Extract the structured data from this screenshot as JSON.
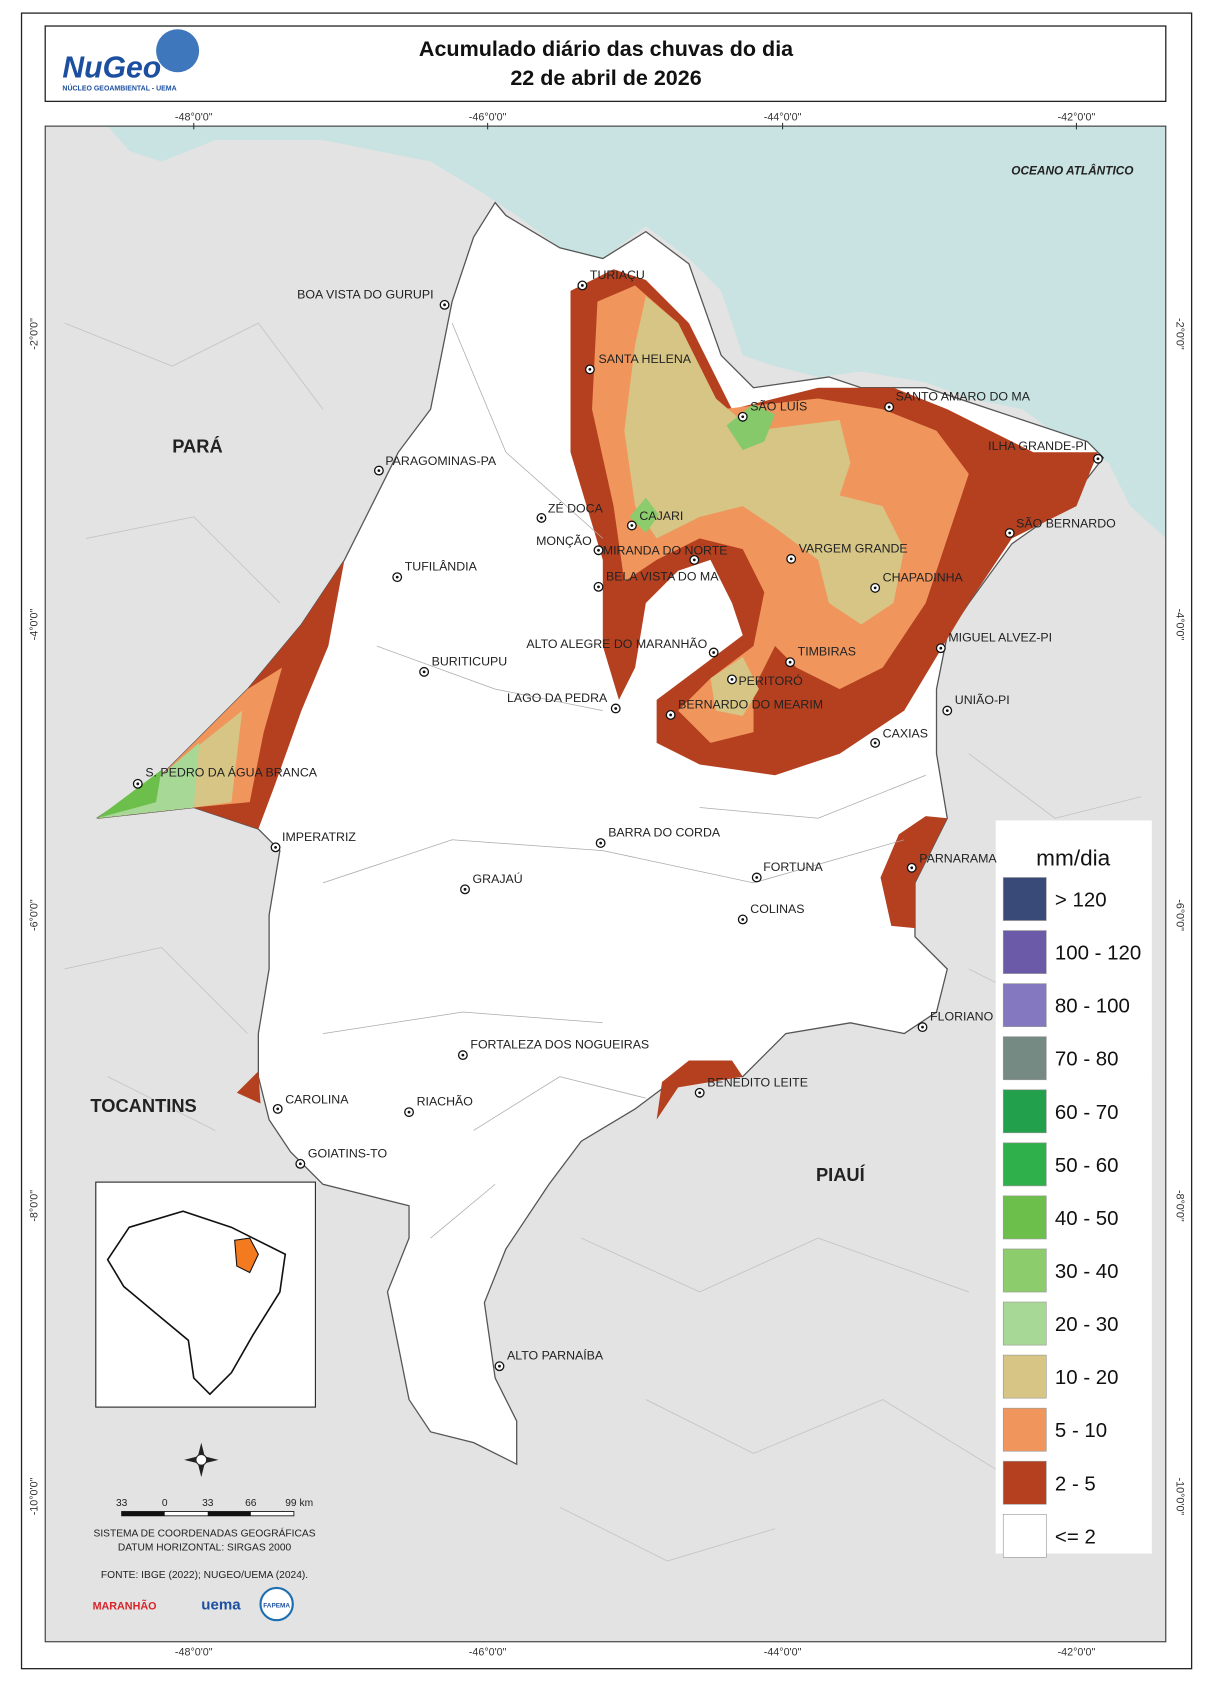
{
  "header": {
    "logo": "NuGeo",
    "logo_subtitle": "NÚCLEO GEOAMBIENTAL - UEMA",
    "title_line1": "Acumulado diário das chuvas do dia",
    "title_line2": "22 de abril de 2026"
  },
  "grid": {
    "longitudes": [
      "-48°0'0\"",
      "-46°0'0\"",
      "-44°0'0\"",
      "-42°0'0\""
    ],
    "latitudes": [
      "-2°0'0\"",
      "-4°0'0\"",
      "-6°0'0\"",
      "-8°0'0\"",
      "-10°0'0\""
    ]
  },
  "map": {
    "ocean": "OCEANO ATLÂNTICO",
    "states": [
      "PARÁ",
      "TOCANTINS",
      "PIAUÍ"
    ],
    "cities": [
      "TURIAÇU",
      "BOA VISTA DO GURUPI",
      "SANTA HELENA",
      "SÃO LUÍS",
      "SANTO AMARO DO MA",
      "ILHA GRANDE-PI",
      "PARAGOMINAS-PA",
      "ZÉ DOCA",
      "CAJARI",
      "SÃO BERNARDO",
      "MONÇÃO",
      "MIRANDA DO NORTE",
      "VARGEM GRANDE",
      "TUFILÂNDIA",
      "BELA VISTA DO MA",
      "CHAPADINHA",
      "MIGUEL ALVEZ-PI",
      "ALTO ALEGRE DO MARANHÃO",
      "TIMBIRAS",
      "BURITICUPU",
      "PERITORÓ",
      "LAGO DA PEDRA",
      "BERNARDO DO MEARIM",
      "UNIÃO-PI",
      "CAXIAS",
      "S. PEDRO DA ÁGUA BRANCA",
      "IMPERATRIZ",
      "BARRA DO CORDA",
      "PARNARAMA",
      "FORTUNA",
      "GRAJAÚ",
      "COLINAS",
      "FLORIANO",
      "FORTALEZA DOS NOGUEIRAS",
      "BENEDITO LEITE",
      "CAROLINA",
      "RIACHÃO",
      "GOIATINS-TO",
      "ALTO PARNAÍBA"
    ]
  },
  "legend": {
    "title": "mm/dia",
    "items": [
      {
        "label": "> 120",
        "color": "#3a4a78"
      },
      {
        "label": "100 - 120",
        "color": "#6a5aa8"
      },
      {
        "label": "80 - 100",
        "color": "#8478c0"
      },
      {
        "label": "70 - 80",
        "color": "#768a84"
      },
      {
        "label": "60 - 70",
        "color": "#22a04c"
      },
      {
        "label": "50 - 60",
        "color": "#30b04a"
      },
      {
        "label": "40 - 50",
        "color": "#6cbf4a"
      },
      {
        "label": "30 - 40",
        "color": "#8ccc6c"
      },
      {
        "label": "20 - 30",
        "color": "#a8d896"
      },
      {
        "label": "10 - 20",
        "color": "#d6c585"
      },
      {
        "label": "5 - 10",
        "color": "#f0965c"
      },
      {
        "label": "2 - 5",
        "color": "#b5401f"
      },
      {
        "label": "<= 2",
        "color": "#ffffff"
      }
    ]
  },
  "scale_bar": {
    "ticks": [
      "33",
      "0",
      "33",
      "66",
      "99 km"
    ]
  },
  "footer": {
    "crs": "SISTEMA DE COORDENADAS GEOGRÁFICAS",
    "datum": "DATUM HORIZONTAL: SIRGAS 2000",
    "source": "FONTE: IBGE (2022); NUGEO/UEMA (2024).",
    "logo_state": "MARANHÃO",
    "logo_uema": "uema",
    "logo_fapema": "FAPEMA"
  }
}
